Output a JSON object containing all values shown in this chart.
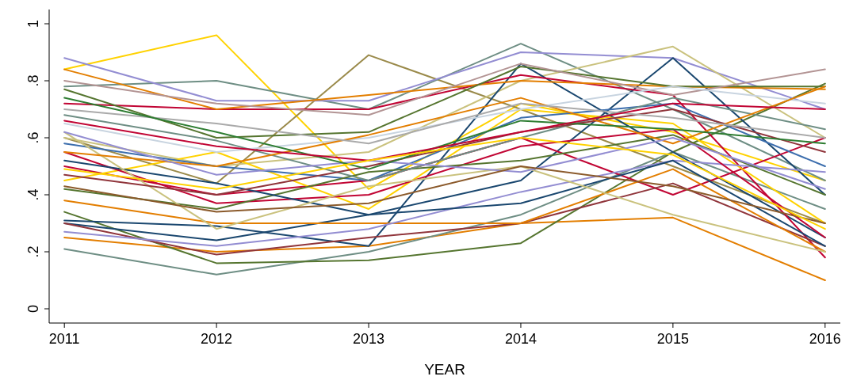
{
  "chart_data": {
    "type": "line",
    "xlabel": "YEAR",
    "x": [
      2011,
      2012,
      2013,
      2014,
      2015,
      2016
    ],
    "xlim": [
      2010.9,
      2016.1
    ],
    "xticks": [
      2011,
      2012,
      2013,
      2014,
      2015,
      2016
    ],
    "ylim": [
      -0.05,
      1.05
    ],
    "yticks": [
      0,
      {
        "value": 0.2,
        "label": ".2"
      },
      {
        "value": 0.4,
        "label": ".4"
      },
      {
        "value": 0.6,
        "label": ".6"
      },
      {
        "value": 0.8,
        "label": ".8"
      },
      1
    ],
    "marker": "none",
    "line_style": "solid",
    "series": [
      {
        "color": "#ffd200",
        "values": [
          0.84,
          0.96,
          0.42,
          0.72,
          0.62,
          0.45
        ]
      },
      {
        "color": "#9a8a4a",
        "values": [
          0.6,
          0.44,
          0.89,
          0.7,
          0.5,
          0.3
        ]
      },
      {
        "color": "#e37e00",
        "values": [
          0.25,
          0.2,
          0.22,
          0.3,
          0.32,
          0.1
        ]
      },
      {
        "color": "#6e8e84",
        "values": [
          0.21,
          0.12,
          0.2,
          0.33,
          0.55,
          0.35
        ]
      },
      {
        "color": "#6e8e84",
        "values": [
          0.78,
          0.8,
          0.7,
          0.93,
          0.7,
          0.45
        ]
      },
      {
        "color": "#55752f",
        "values": [
          0.34,
          0.16,
          0.17,
          0.23,
          0.55,
          0.79
        ]
      },
      {
        "color": "#938dd2",
        "values": [
          0.88,
          0.73,
          0.73,
          0.9,
          0.88,
          0.7
        ]
      },
      {
        "color": "#cac27e",
        "values": [
          0.6,
          0.5,
          0.55,
          0.8,
          0.92,
          0.6
        ]
      },
      {
        "color": "#1a476f",
        "values": [
          0.31,
          0.29,
          0.22,
          0.86,
          0.55,
          0.25
        ]
      },
      {
        "color": "#1a476f",
        "values": [
          0.3,
          0.24,
          0.33,
          0.45,
          0.88,
          0.4
        ]
      },
      {
        "color": "#c10534",
        "values": [
          0.72,
          0.7,
          0.7,
          0.82,
          0.75,
          0.18
        ]
      },
      {
        "color": "#c10534",
        "values": [
          0.5,
          0.4,
          0.45,
          0.6,
          0.4,
          0.6
        ]
      },
      {
        "color": "#90353b",
        "values": [
          0.3,
          0.19,
          0.25,
          0.3,
          0.44,
          0.22
        ]
      },
      {
        "color": "#e37e00",
        "values": [
          0.84,
          0.7,
          0.75,
          0.8,
          0.78,
          0.77
        ]
      },
      {
        "color": "#e37e00",
        "values": [
          0.38,
          0.3,
          0.3,
          0.3,
          0.49,
          0.2
        ]
      },
      {
        "color": "#55752f",
        "values": [
          0.77,
          0.6,
          0.62,
          0.85,
          0.78,
          0.78
        ]
      },
      {
        "color": "#b39494",
        "values": [
          0.8,
          0.72,
          0.68,
          0.86,
          0.75,
          0.84
        ]
      },
      {
        "color": "#ffd200",
        "values": [
          0.45,
          0.55,
          0.35,
          0.7,
          0.65,
          0.3
        ]
      },
      {
        "color": "#c8d4e0",
        "values": [
          0.65,
          0.55,
          0.6,
          0.7,
          0.78,
          0.72
        ]
      },
      {
        "color": "#3c6ead",
        "values": [
          0.58,
          0.5,
          0.45,
          0.67,
          0.72,
          0.5
        ]
      },
      {
        "color": "#938dd2",
        "values": [
          0.27,
          0.22,
          0.28,
          0.41,
          0.52,
          0.48
        ]
      },
      {
        "color": "#c10534",
        "values": [
          0.55,
          0.37,
          0.4,
          0.57,
          0.63,
          0.25
        ]
      },
      {
        "color": "#55752f",
        "values": [
          0.42,
          0.35,
          0.48,
          0.52,
          0.61,
          0.4
        ]
      },
      {
        "color": "#1a476f",
        "values": [
          0.52,
          0.44,
          0.33,
          0.37,
          0.52,
          0.22
        ]
      },
      {
        "color": "#cac27e",
        "values": [
          0.62,
          0.28,
          0.43,
          0.5,
          0.33,
          0.2
        ]
      },
      {
        "color": "#6e8e84",
        "values": [
          0.68,
          0.59,
          0.45,
          0.6,
          0.74,
          0.63
        ]
      },
      {
        "color": "#90353b",
        "values": [
          0.47,
          0.4,
          0.5,
          0.62,
          0.7,
          0.55
        ]
      },
      {
        "color": "#e37e00",
        "values": [
          0.55,
          0.5,
          0.61,
          0.74,
          0.58,
          0.78
        ]
      },
      {
        "color": "#aaaaaa",
        "values": [
          0.7,
          0.65,
          0.58,
          0.72,
          0.67,
          0.6
        ]
      },
      {
        "color": "#938dd2",
        "values": [
          0.62,
          0.47,
          0.52,
          0.48,
          0.6,
          0.42
        ]
      },
      {
        "color": "#2e7d32",
        "values": [
          0.74,
          0.62,
          0.49,
          0.66,
          0.63,
          0.58
        ]
      },
      {
        "color": "#8b5a2b",
        "values": [
          0.43,
          0.34,
          0.37,
          0.5,
          0.43,
          0.3
        ]
      },
      {
        "color": "#c10534",
        "values": [
          0.66,
          0.57,
          0.52,
          0.62,
          0.72,
          0.7
        ]
      },
      {
        "color": "#ffd200",
        "values": [
          0.49,
          0.42,
          0.52,
          0.6,
          0.54,
          0.28
        ]
      }
    ]
  }
}
